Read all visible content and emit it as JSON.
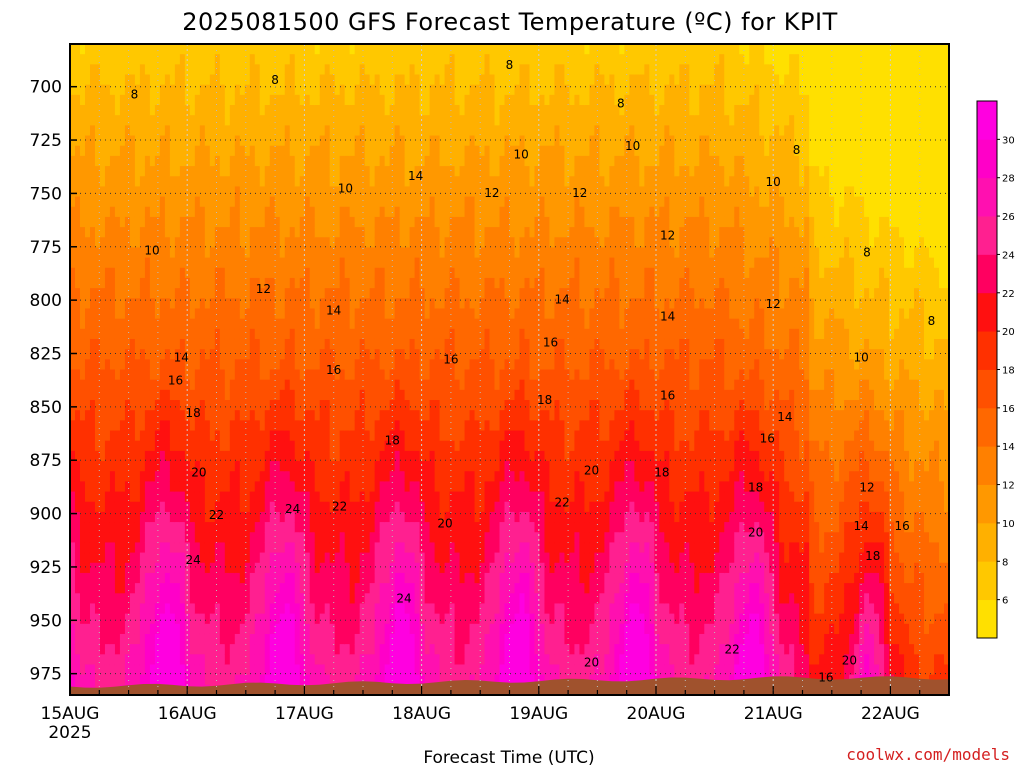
{
  "chart_data": {
    "type": "heatmap",
    "title": "2025081500 GFS Forecast Temperature (ºC) for KPIT",
    "xlabel": "Forecast Time (UTC)",
    "ylabel": "",
    "x_tick_labels": [
      "15AUG",
      "16AUG",
      "17AUG",
      "18AUG",
      "19AUG",
      "20AUG",
      "21AUG",
      "22AUG"
    ],
    "x_year_label": "2025",
    "xlim_days": [
      0,
      7.5
    ],
    "y_tick_labels": [
      "700",
      "725",
      "750",
      "775",
      "800",
      "825",
      "850",
      "875",
      "900",
      "925",
      "950",
      "975"
    ],
    "y_ticks": [
      700,
      725,
      750,
      775,
      800,
      825,
      850,
      875,
      900,
      925,
      950,
      975
    ],
    "ylim": [
      680,
      985
    ],
    "grid": true,
    "contour_interval_c": 2,
    "colorbar": {
      "ticks": [
        "6",
        "8",
        "10",
        "12",
        "14",
        "16",
        "18",
        "20",
        "22",
        "24",
        "26",
        "28",
        "30"
      ],
      "colors": [
        "#ffe000",
        "#ffc800",
        "#ffb000",
        "#ff9800",
        "#ff8000",
        "#ff6800",
        "#ff5000",
        "#ff3000",
        "#ff1010",
        "#ff0060",
        "#ff2090",
        "#ff10b0",
        "#ff00c8",
        "#ff00e0"
      ]
    },
    "sample_profile_day_max": [
      {
        "p": 700,
        "t": 8
      },
      {
        "p": 750,
        "t": 12
      },
      {
        "p": 800,
        "t": 15
      },
      {
        "p": 850,
        "t": 18
      },
      {
        "p": 900,
        "t": 22
      },
      {
        "p": 950,
        "t": 26
      },
      {
        "p": 975,
        "t": 30
      }
    ],
    "contour_labels": [
      {
        "text": "8",
        "d": 0.55,
        "p": 704
      },
      {
        "text": "8",
        "d": 1.75,
        "p": 697
      },
      {
        "text": "8",
        "d": 3.75,
        "p": 690
      },
      {
        "text": "8",
        "d": 4.7,
        "p": 708
      },
      {
        "text": "8",
        "d": 6.2,
        "p": 730
      },
      {
        "text": "8",
        "d": 6.8,
        "p": 778
      },
      {
        "text": "8",
        "d": 7.35,
        "p": 810
      },
      {
        "text": "10",
        "d": 0.7,
        "p": 777
      },
      {
        "text": "10",
        "d": 2.35,
        "p": 748
      },
      {
        "text": "10",
        "d": 3.85,
        "p": 732
      },
      {
        "text": "10",
        "d": 4.8,
        "p": 728
      },
      {
        "text": "10",
        "d": 6.0,
        "p": 745
      },
      {
        "text": "10",
        "d": 6.75,
        "p": 827
      },
      {
        "text": "12",
        "d": 1.65,
        "p": 795
      },
      {
        "text": "12",
        "d": 3.6,
        "p": 750
      },
      {
        "text": "12",
        "d": 4.35,
        "p": 750
      },
      {
        "text": "12",
        "d": 5.1,
        "p": 770
      },
      {
        "text": "12",
        "d": 6.0,
        "p": 802
      },
      {
        "text": "12",
        "d": 6.8,
        "p": 888
      },
      {
        "text": "14",
        "d": 0.95,
        "p": 827
      },
      {
        "text": "14",
        "d": 2.25,
        "p": 805
      },
      {
        "text": "14",
        "d": 2.95,
        "p": 742
      },
      {
        "text": "14",
        "d": 4.2,
        "p": 800
      },
      {
        "text": "14",
        "d": 5.1,
        "p": 808
      },
      {
        "text": "14",
        "d": 6.1,
        "p": 855
      },
      {
        "text": "14",
        "d": 6.75,
        "p": 906
      },
      {
        "text": "16",
        "d": 0.9,
        "p": 838
      },
      {
        "text": "16",
        "d": 2.25,
        "p": 833
      },
      {
        "text": "16",
        "d": 3.25,
        "p": 828
      },
      {
        "text": "16",
        "d": 4.1,
        "p": 820
      },
      {
        "text": "16",
        "d": 5.1,
        "p": 845
      },
      {
        "text": "16",
        "d": 5.95,
        "p": 865
      },
      {
        "text": "16",
        "d": 6.45,
        "p": 977
      },
      {
        "text": "16",
        "d": 7.1,
        "p": 906
      },
      {
        "text": "18",
        "d": 1.05,
        "p": 853
      },
      {
        "text": "18",
        "d": 2.75,
        "p": 866
      },
      {
        "text": "18",
        "d": 4.05,
        "p": 847
      },
      {
        "text": "18",
        "d": 5.05,
        "p": 881
      },
      {
        "text": "18",
        "d": 5.85,
        "p": 888
      },
      {
        "text": "18",
        "d": 6.85,
        "p": 920
      },
      {
        "text": "20",
        "d": 1.1,
        "p": 881
      },
      {
        "text": "20",
        "d": 3.2,
        "p": 905
      },
      {
        "text": "20",
        "d": 4.45,
        "p": 880
      },
      {
        "text": "20",
        "d": 4.45,
        "p": 970
      },
      {
        "text": "20",
        "d": 5.85,
        "p": 909
      },
      {
        "text": "20",
        "d": 6.65,
        "p": 969
      },
      {
        "text": "22",
        "d": 1.25,
        "p": 901
      },
      {
        "text": "22",
        "d": 2.3,
        "p": 897
      },
      {
        "text": "22",
        "d": 4.2,
        "p": 895
      },
      {
        "text": "22",
        "d": 5.65,
        "p": 964
      },
      {
        "text": "24",
        "d": 1.05,
        "p": 922
      },
      {
        "text": "24",
        "d": 1.9,
        "p": 898
      },
      {
        "text": "24",
        "d": 2.85,
        "p": 940
      }
    ]
  },
  "credit": "coolwx.com/models"
}
